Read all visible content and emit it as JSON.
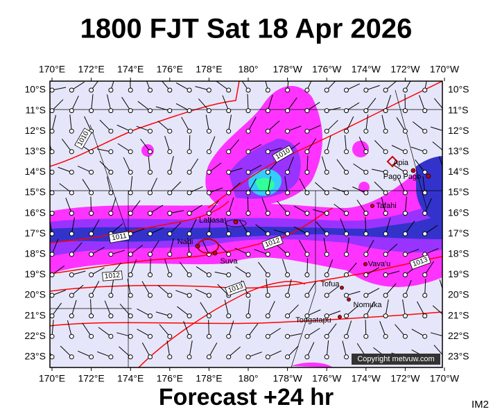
{
  "title": "1800 FJT Sat 18 Apr 2026",
  "footer": "Forecast +24 hr",
  "id_label": "IM2",
  "copyright": "Copyright metvuw.com",
  "longitude_labels": [
    "170°E",
    "172°E",
    "174°E",
    "176°E",
    "178°E",
    "180°",
    "178°W",
    "176°W",
    "174°W",
    "172°W",
    "170°W"
  ],
  "latitude_labels": [
    "10°S",
    "11°S",
    "12°S",
    "13°S",
    "14°S",
    "15°S",
    "16°S",
    "17°S",
    "18°S",
    "19°S",
    "20°S",
    "21°S",
    "22°S",
    "23°S"
  ],
  "isobar_labels": [
    "1010",
    "1010",
    "1011",
    "1012",
    "1012",
    "1013",
    "1013"
  ],
  "places": [
    "Apia",
    "Pago Pago",
    "Tafahi",
    "Labasa",
    "Nadi",
    "Suva",
    "Vava'u",
    "Tofua",
    "Nomuka",
    "Tongatapu"
  ]
}
